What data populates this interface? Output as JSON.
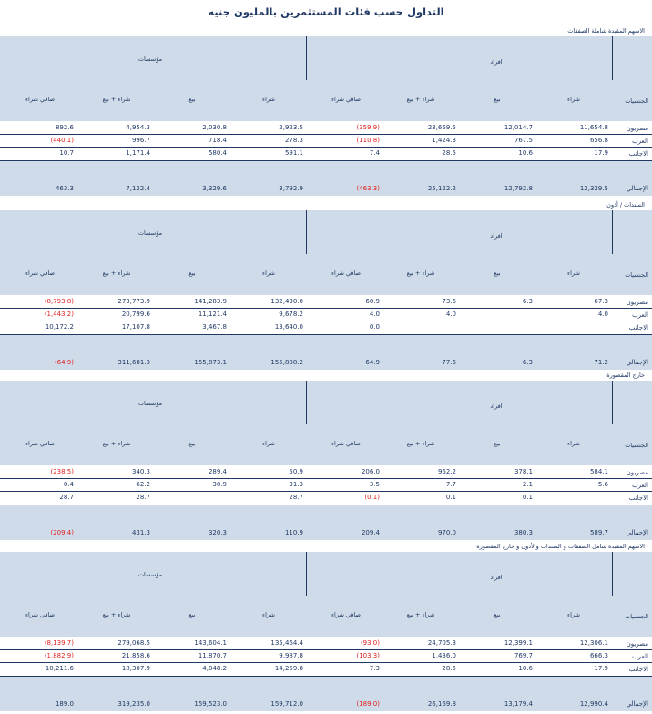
{
  "title": "التداول حسب فئات المستثمرين بالمليون جنيه",
  "colors": {
    "header_bg": "#cfdbe8",
    "text": "#1f3864",
    "negative": "#e02020"
  },
  "group_labels": {
    "individuals": "افراد",
    "institutions": "مؤسسات"
  },
  "column_headers": {
    "nationality": "الجنسيات",
    "buy": "شراء",
    "sell": "بيع",
    "buy_sell": "شراء + بيع",
    "net_buy": "صافي شراء"
  },
  "sections": [
    {
      "label": "الاسهم المقيدة شاملة الصفقات",
      "rows": [
        {
          "name": "مصريون",
          "values": [
            "11,654.8",
            "12,014.7",
            "23,669.5",
            "(359.9)",
            "2,923.5",
            "2,030.8",
            "4,954.3",
            "892.6"
          ]
        },
        {
          "name": "العرب",
          "values": [
            "656.8",
            "767.5",
            "1,424.3",
            "(110.8)",
            "278.3",
            "718.4",
            "996.7",
            "(440.1)"
          ]
        },
        {
          "name": "الاجانب",
          "values": [
            "17.9",
            "10.6",
            "28.5",
            "7.4",
            "591.1",
            "580.4",
            "1,171.4",
            "10.7"
          ]
        }
      ],
      "total": {
        "name": "الإجمالي",
        "values": [
          "12,329.5",
          "12,792.8",
          "25,122.2",
          "(463.3)",
          "3,792.9",
          "3,329.6",
          "7,122.4",
          "463.3"
        ]
      }
    },
    {
      "label": "السندات / أذون",
      "rows": [
        {
          "name": "مصريون",
          "values": [
            "67.3",
            "6.3",
            "73.6",
            "60.9",
            "132,490.0",
            "141,283.9",
            "273,773.9",
            "(8,793.8)"
          ]
        },
        {
          "name": "العرب",
          "values": [
            "4.0",
            "",
            "4.0",
            "4.0",
            "9,678.2",
            "11,121.4",
            "20,799.6",
            "(1,443.2)"
          ]
        },
        {
          "name": "الاجانب",
          "values": [
            "",
            "",
            "",
            "0.0",
            "13,640.0",
            "3,467.8",
            "17,107.8",
            "10,172.2"
          ]
        }
      ],
      "total": {
        "name": "الإجمالي",
        "values": [
          "71.2",
          "6.3",
          "77.6",
          "64.9",
          "155,808.2",
          "155,873.1",
          "311,681.3",
          "(64.9)"
        ]
      }
    },
    {
      "label": "خارج المقصورة",
      "rows": [
        {
          "name": "مصريون",
          "values": [
            "584.1",
            "378.1",
            "962.2",
            "206.0",
            "50.9",
            "289.4",
            "340.3",
            "(238.5)"
          ]
        },
        {
          "name": "العرب",
          "values": [
            "5.6",
            "2.1",
            "7.7",
            "3.5",
            "31.3",
            "30.9",
            "62.2",
            "0.4"
          ]
        },
        {
          "name": "الاجانب",
          "values": [
            "",
            "0.1",
            "0.1",
            "(0.1)",
            "28.7",
            "",
            "28.7",
            "28.7"
          ]
        }
      ],
      "total": {
        "name": "الإجمالي",
        "values": [
          "589.7",
          "380.3",
          "970.0",
          "209.4",
          "110.9",
          "320.3",
          "431.3",
          "(209.4)"
        ]
      }
    },
    {
      "label": "الاسهم المقيدة شامل الصفقات و السندات والأذون و خارج المقصورة",
      "rows": [
        {
          "name": "مصريون",
          "values": [
            "12,306.1",
            "12,399.1",
            "24,705.3",
            "(93.0)",
            "135,464.4",
            "143,604.1",
            "279,068.5",
            "(8,139.7)"
          ]
        },
        {
          "name": "العرب",
          "values": [
            "666.3",
            "769.7",
            "1,436.0",
            "(103.3)",
            "9,987.8",
            "11,870.7",
            "21,858.6",
            "(1,882.9)"
          ]
        },
        {
          "name": "الاجانب",
          "values": [
            "17.9",
            "10.6",
            "28.5",
            "7.3",
            "14,259.8",
            "4,048.2",
            "18,307.9",
            "10,211.6"
          ]
        }
      ],
      "total": {
        "name": "الإجمالي",
        "values": [
          "12,990.4",
          "13,179.4",
          "26,169.8",
          "(189.0)",
          "159,712.0",
          "159,523.0",
          "319,235.0",
          "189.0"
        ]
      }
    }
  ]
}
